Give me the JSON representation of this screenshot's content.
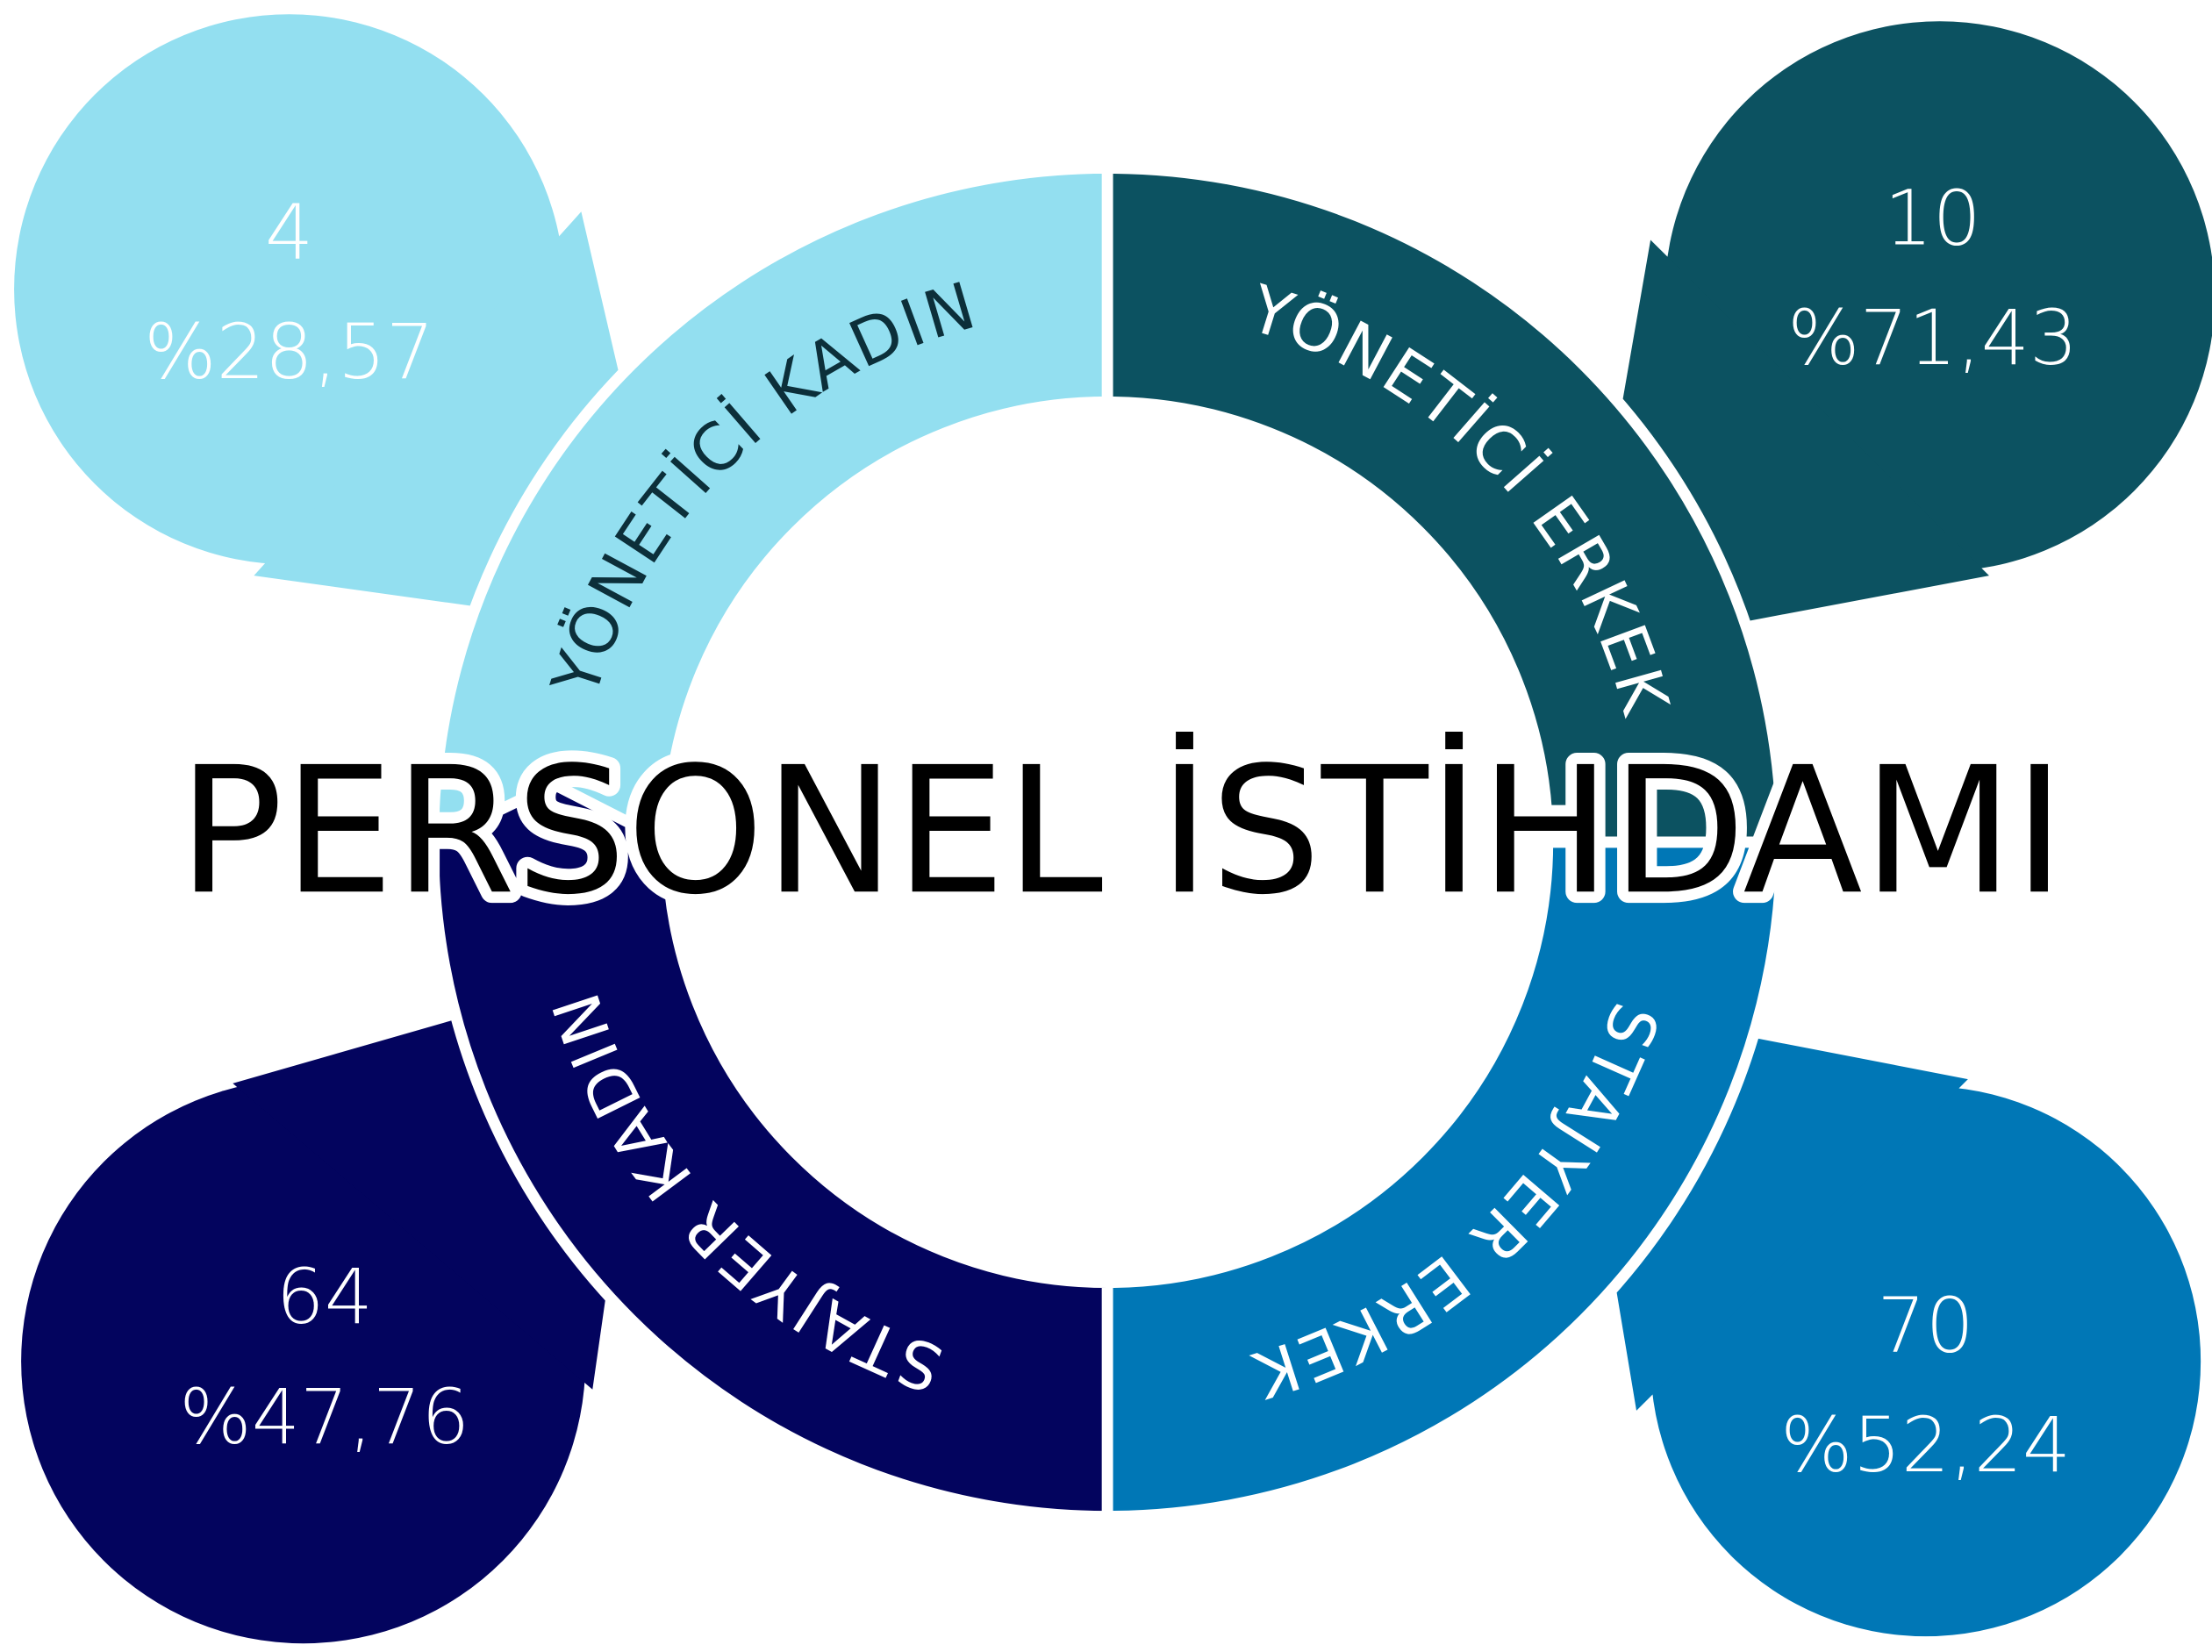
{
  "title": "PERSONEL İSTİHDAMI",
  "segments": [
    {
      "label": "YÖNETİCİ KADIN",
      "count": "4",
      "percent": "%28,57",
      "color": "#93dff0",
      "text_color": "#0c2f3a"
    },
    {
      "label": "YÖNETİCİ ERKEK",
      "count": "10",
      "percent": "%71,43",
      "color": "#0c5261",
      "text_color": "#ffffff"
    },
    {
      "label": "STAJYER ERKEK",
      "count": "70",
      "percent": "%52,24",
      "color": "#0077b6",
      "text_color": "#ffffff"
    },
    {
      "label": "STAJYER KADIN",
      "count": "64",
      "percent": "%47,76",
      "color": "#03045e",
      "text_color": "#ffffff"
    }
  ]
}
